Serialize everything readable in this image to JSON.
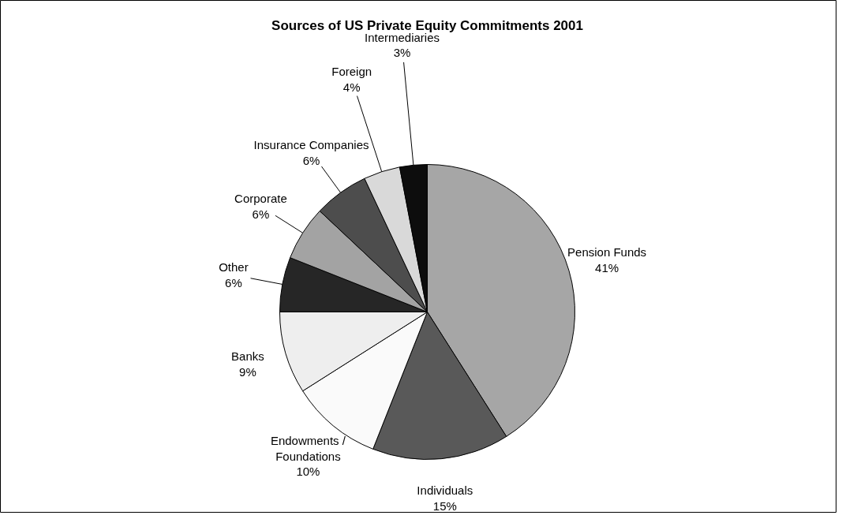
{
  "chart_data": {
    "type": "pie",
    "title": "Sources of US Private Equity Commitments 2001",
    "categories": [
      "Pension Funds",
      "Individuals",
      "Endowments / Foundations",
      "Banks",
      "Other",
      "Corporate",
      "Insurance Companies",
      "Foreign",
      "Intermediaries"
    ],
    "values": [
      41,
      15,
      10,
      9,
      6,
      6,
      6,
      4,
      3
    ],
    "colors": [
      "#a6a6a6",
      "#595959",
      "#fafafa",
      "#eeeeee",
      "#262626",
      "#a3a3a3",
      "#4d4d4d",
      "#d9d9d9",
      "#0d0d0d"
    ],
    "value_labels": [
      "41%",
      "15%",
      "10%",
      "9%",
      "6%",
      "6%",
      "6%",
      "4%",
      "3%"
    ]
  }
}
